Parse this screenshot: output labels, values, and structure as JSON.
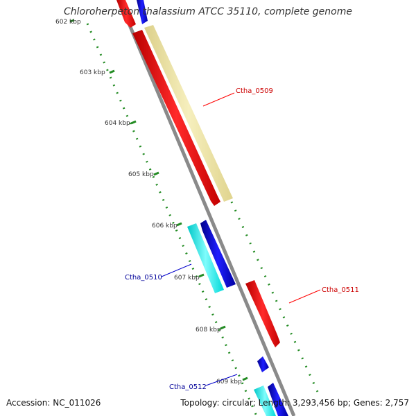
{
  "title": "Chloroherpeton thalassium ATCC 35110, complete genome",
  "footer": {
    "accession": "Accession: NC_011026",
    "stats": "Topology: circular; Length: 3,293,456 bp; Genes: 2,757"
  },
  "tick_labels": [
    "602 kbp",
    "603 kbp",
    "604 kbp",
    "605 kbp",
    "606 kbp",
    "607 kbp",
    "608 kbp",
    "609 kbp"
  ],
  "genes": [
    {
      "label": "Ctha_0509",
      "strand": "forward",
      "color": "#ff0000",
      "cds_color": "#f0e6a0"
    },
    {
      "label": "Ctha_0510",
      "strand": "reverse",
      "color": "#0000ee",
      "cds_color": "#00ffff"
    },
    {
      "label": "Ctha_0511",
      "strand": "forward",
      "color": "#ff0000"
    },
    {
      "label": "Ctha_0512",
      "strand": "reverse",
      "color": "#0000ee",
      "cds_color": "#00ffff"
    }
  ],
  "colors": {
    "backbone": "#888888",
    "gc_ticks": "#228b22",
    "forward_label": "#cc0000",
    "reverse_label": "#000099"
  }
}
